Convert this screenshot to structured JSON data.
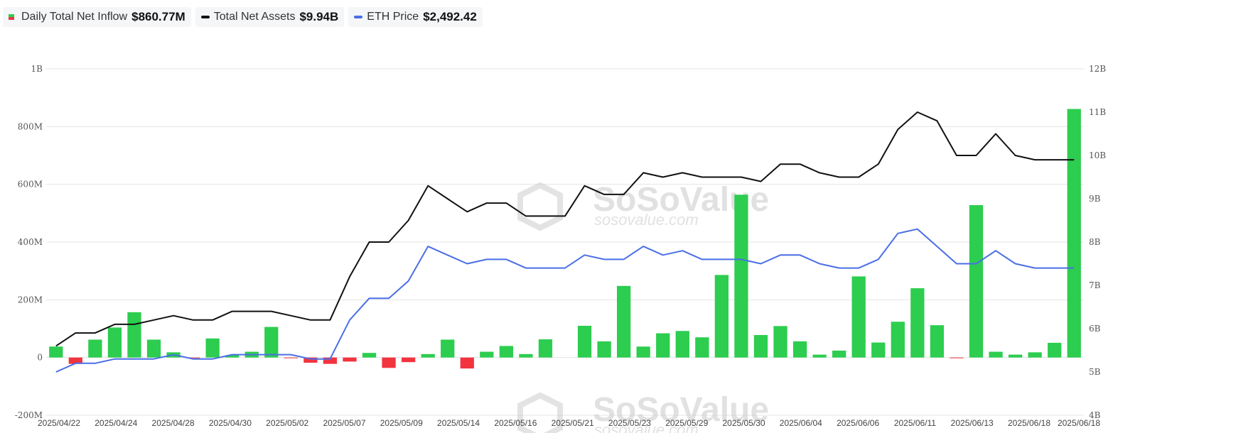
{
  "legend": [
    {
      "name": "Daily Total Net Inflow",
      "value": "$860.77M",
      "kind": "bar"
    },
    {
      "name": "Total Net Assets",
      "value": "$9.94B",
      "kind": "line",
      "color": "#111111"
    },
    {
      "name": "ETH Price",
      "value": "$2,492.42",
      "kind": "line",
      "color": "#4a6ee6"
    }
  ],
  "watermark": {
    "brand": "SoSoValue",
    "site": "sosovalue.com"
  },
  "chart_data": {
    "type": "bar",
    "colors": {
      "positive": "#2dcd4f",
      "negative": "#f2343f",
      "assets_line": "#111111",
      "price_line": "#4a6ee6",
      "grid": "#e5e5e5"
    },
    "x_tick_labels": [
      "2025/04/22",
      "2025/04/24",
      "2025/04/28",
      "2025/04/30",
      "2025/05/02",
      "2025/05/07",
      "2025/05/09",
      "2025/05/14",
      "2025/05/16",
      "2025/05/21",
      "2025/05/23",
      "2025/05/29",
      "2025/05/30",
      "2025/06/04",
      "2025/06/06",
      "2025/06/11",
      "2025/06/13",
      "2025/06/18",
      "2025/06/18"
    ],
    "y_left": {
      "min": -200,
      "max": 1000,
      "ticks": [
        "-200M",
        "0",
        "200M",
        "400M",
        "600M",
        "800M",
        "1B"
      ]
    },
    "y_right": {
      "min": 4,
      "max": 12,
      "ticks": [
        "4B",
        "5B",
        "6B",
        "7B",
        "8B",
        "9B",
        "10B",
        "11B",
        "12B"
      ]
    },
    "grid": true,
    "legend_position": "top-left",
    "series": [
      {
        "name": "Daily Total Net Inflow",
        "type": "bar",
        "axis": "left",
        "unit": "M",
        "values": [
          38,
          -22,
          62,
          104,
          157,
          62,
          18,
          -2,
          66,
          8,
          20,
          106,
          -2,
          -18,
          -22,
          -14,
          16,
          -36,
          -16,
          12,
          62,
          -38,
          20,
          40,
          12,
          63,
          0,
          110,
          56,
          248,
          38,
          84,
          92,
          70,
          286,
          564,
          78,
          109,
          56,
          10,
          24,
          281,
          52,
          124,
          240,
          112,
          -2,
          528,
          20,
          10,
          18,
          51,
          861
        ]
      },
      {
        "name": "Total Net Assets",
        "type": "line",
        "axis": "right",
        "unit": "B",
        "values": [
          5.6,
          5.9,
          5.9,
          6.1,
          6.1,
          6.2,
          6.3,
          6.2,
          6.2,
          6.4,
          6.4,
          6.4,
          6.3,
          6.2,
          6.2,
          7.2,
          8.0,
          8.0,
          8.5,
          9.3,
          9.0,
          8.7,
          8.9,
          8.9,
          8.6,
          8.6,
          8.6,
          9.3,
          9.1,
          9.1,
          9.6,
          9.5,
          9.6,
          9.5,
          9.5,
          9.5,
          9.4,
          9.8,
          9.8,
          9.6,
          9.5,
          9.5,
          9.8,
          10.6,
          11.0,
          10.8,
          10.0,
          10.0,
          10.5,
          10.0,
          9.9,
          9.9,
          9.9
        ]
      },
      {
        "name": "ETH Price",
        "type": "line",
        "axis": "right",
        "unit": "B-scale",
        "values": [
          5.0,
          5.2,
          5.2,
          5.3,
          5.3,
          5.3,
          5.4,
          5.3,
          5.3,
          5.4,
          5.4,
          5.4,
          5.4,
          5.3,
          5.3,
          6.2,
          6.7,
          6.7,
          7.1,
          7.9,
          7.7,
          7.5,
          7.6,
          7.6,
          7.4,
          7.4,
          7.4,
          7.7,
          7.6,
          7.6,
          7.9,
          7.7,
          7.8,
          7.6,
          7.6,
          7.6,
          7.5,
          7.7,
          7.7,
          7.5,
          7.4,
          7.4,
          7.6,
          8.2,
          8.3,
          7.9,
          7.5,
          7.5,
          7.8,
          7.5,
          7.4,
          7.4,
          7.4
        ]
      }
    ]
  }
}
